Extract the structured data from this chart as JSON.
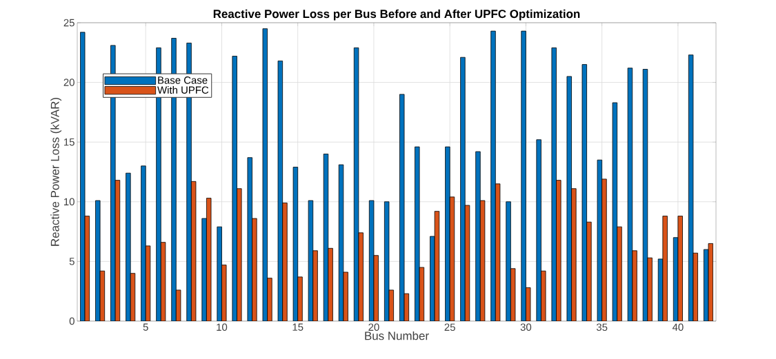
{
  "chart_data": {
    "type": "bar",
    "title": "Reactive Power Loss per Bus Before and After UPFC Optimization",
    "xlabel": "Bus Number",
    "ylabel": "Reactive Power Loss (kVAR)",
    "x": [
      1,
      2,
      3,
      4,
      5,
      6,
      7,
      8,
      9,
      10,
      11,
      12,
      13,
      14,
      15,
      16,
      17,
      18,
      19,
      20,
      21,
      22,
      23,
      24,
      25,
      26,
      27,
      28,
      29,
      30,
      31,
      32,
      33,
      34,
      35,
      36,
      37,
      38,
      39,
      40,
      41,
      42
    ],
    "series": [
      {
        "name": "Base Case",
        "color": "#0072bd",
        "values": [
          24.2,
          10.1,
          23.1,
          12.4,
          13.0,
          22.9,
          23.7,
          23.3,
          8.6,
          7.9,
          22.2,
          13.7,
          24.5,
          21.8,
          12.9,
          10.1,
          14.0,
          13.1,
          22.9,
          10.1,
          10.0,
          19.0,
          14.6,
          7.1,
          14.6,
          22.1,
          14.2,
          24.3,
          10.0,
          24.3,
          15.2,
          22.9,
          20.5,
          21.5,
          13.5,
          18.3,
          21.2,
          21.1,
          5.2,
          7.0,
          22.3,
          6.0
        ]
      },
      {
        "name": "With UPFC",
        "color": "#d95319",
        "values": [
          8.8,
          4.2,
          11.8,
          4.0,
          6.3,
          6.6,
          2.6,
          11.7,
          10.3,
          4.7,
          11.1,
          8.6,
          3.6,
          9.9,
          3.7,
          5.9,
          6.1,
          4.1,
          7.4,
          5.5,
          2.6,
          2.3,
          4.5,
          9.2,
          10.4,
          9.7,
          10.1,
          11.5,
          4.4,
          2.8,
          4.2,
          11.8,
          11.1,
          8.3,
          11.9,
          7.9,
          5.9,
          5.3,
          8.8,
          8.8,
          5.7,
          6.5
        ]
      }
    ],
    "xlim": [
      0.5,
      42.5
    ],
    "ylim": [
      0,
      25
    ],
    "xticks": [
      5,
      10,
      15,
      20,
      25,
      30,
      35,
      40
    ],
    "yticks": [
      0,
      5,
      10,
      15,
      20,
      25
    ],
    "grid": true,
    "legend": "top left"
  }
}
